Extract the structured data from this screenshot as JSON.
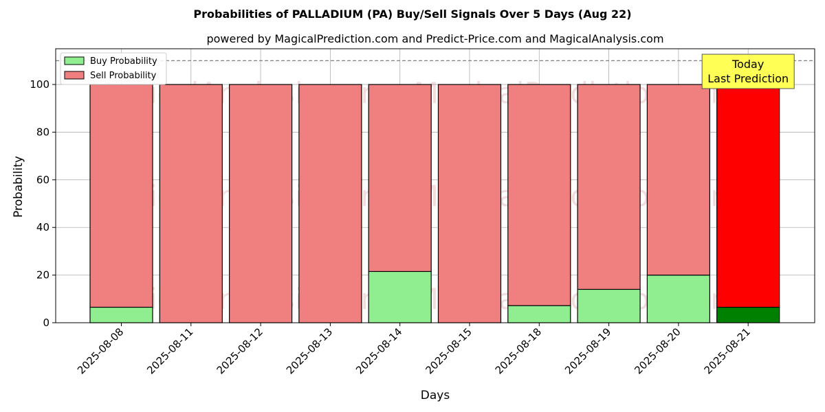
{
  "chart_data": {
    "type": "bar",
    "stacked": true,
    "title": "Probabilities of PALLADIUM (PA) Buy/Sell Signals Over 5 Days (Aug 22)",
    "subtitle": "powered by MagicalPrediction.com and Predict-Price.com and MagicalAnalysis.com",
    "xlabel": "Days",
    "ylabel": "Probability",
    "ylim": [
      0,
      115
    ],
    "yticks": [
      0,
      20,
      40,
      60,
      80,
      100
    ],
    "grid": true,
    "legend_position": "top-left",
    "categories": [
      "2025-08-08",
      "2025-08-11",
      "2025-08-12",
      "2025-08-13",
      "2025-08-14",
      "2025-08-15",
      "2025-08-18",
      "2025-08-19",
      "2025-08-20",
      "2025-08-21"
    ],
    "series": [
      {
        "name": "Buy Probability",
        "color": "#90ee90",
        "highlight_color": "#008000",
        "values": [
          6.5,
          0,
          0,
          0,
          21.5,
          0,
          7.2,
          14,
          20,
          6.5
        ]
      },
      {
        "name": "Sell Probability",
        "color": "#f08080",
        "highlight_color": "#ff0000",
        "values": [
          93.5,
          100,
          100,
          100,
          78.5,
          100,
          92.8,
          86,
          80,
          93.5
        ]
      }
    ],
    "highlight_index": 9,
    "reference_line": {
      "y": 110,
      "style": "dashed",
      "color": "#808080"
    },
    "annotation": {
      "lines": [
        "Today",
        "Last Prediction"
      ],
      "background": "#ffff55"
    },
    "watermarks": [
      "MagicalAnalysis.com",
      "MagicalPrediction.com"
    ]
  }
}
